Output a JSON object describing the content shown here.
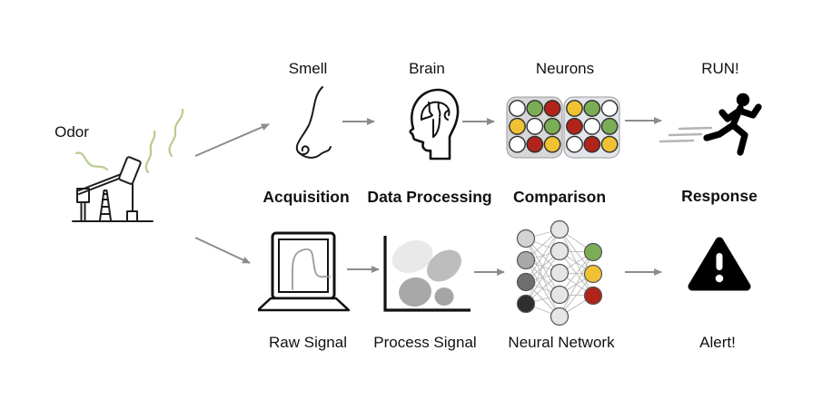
{
  "source": {
    "label": "Odor"
  },
  "biological_pathway": {
    "steps": [
      {
        "label": "Smell",
        "icon": "nose-icon"
      },
      {
        "label": "Brain",
        "icon": "brain-head-icon"
      },
      {
        "label": "Neurons",
        "icon": "neuron-grids-icon"
      },
      {
        "label": "RUN!",
        "icon": "running-person-icon"
      }
    ]
  },
  "stages": [
    "Acquisition",
    "Data Processing",
    "Comparison",
    "Response"
  ],
  "electronic_pathway": {
    "steps": [
      {
        "label": "Raw Signal",
        "icon": "laptop-signal-icon"
      },
      {
        "label": "Process Signal",
        "icon": "cluster-plot-icon"
      },
      {
        "label": "Neural Network",
        "icon": "neural-network-icon"
      },
      {
        "label": "Alert!",
        "icon": "warning-triangle-icon"
      }
    ]
  },
  "neuron_grids": {
    "panel_fills": [
      "#d7d7d7",
      "#e2e5ea"
    ],
    "cell_palette": {
      "W": "#ffffff",
      "G": "#7bad57",
      "Y": "#f0c233",
      "R": "#b02419"
    },
    "panels": [
      [
        "W",
        "G",
        "R",
        "Y",
        "W",
        "G",
        "W",
        "R",
        "Y"
      ],
      [
        "Y",
        "G",
        "W",
        "R",
        "W",
        "G",
        "W",
        "R",
        "Y"
      ]
    ]
  },
  "neural_network": {
    "node_colors": {
      "input": [
        "#d3d3d3",
        "#a8a8a8",
        "#6f6f6f",
        "#2e2e2e"
      ],
      "hidden": [
        "#e5e5e5",
        "#e5e5e5",
        "#e5e5e5",
        "#e5e5e5",
        "#e5e5e5"
      ],
      "output": [
        "#7bad57",
        "#f0c233",
        "#b02419"
      ]
    }
  },
  "cluster_plot": {
    "blob_colors": [
      "#e9e9e9",
      "#bdbdbd",
      "#a8a8a8",
      "#a5a5a5"
    ]
  },
  "colors": {
    "arrow": "#8c8c8c",
    "odor_wave": "#b8cc8f",
    "speed_lines": "#b5b5b5",
    "line_art": "#1d1d1d"
  }
}
